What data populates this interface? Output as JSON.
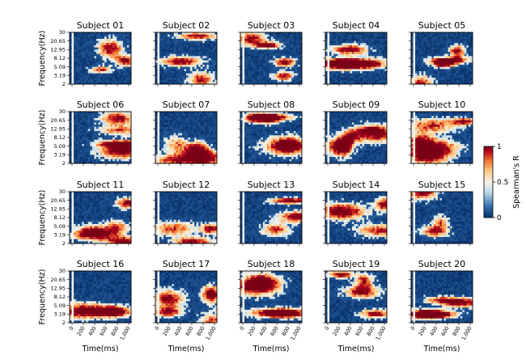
{
  "chart_data": {
    "type": "heatmap",
    "subjects": [
      "Subject 01",
      "Subject 02",
      "Subject 03",
      "Subject 04",
      "Subject 05",
      "Subject 06",
      "Subject 07",
      "Subject 08",
      "Subject 09",
      "Subject 10",
      "Subject 11",
      "Subject 12",
      "Subject 13",
      "Subject 14",
      "Subject 15",
      "Subject 16",
      "Subject 17",
      "Subject 18",
      "Subject 19",
      "Subject 20"
    ],
    "xlabel": "Time(ms)",
    "ylabel": "Frequency(Hz)",
    "x_ticks": [
      "0",
      "200",
      "400",
      "600",
      "800",
      "1,000"
    ],
    "x_range": [
      0,
      1000
    ],
    "y_ticks": [
      "30",
      "20.65",
      "12.95",
      "8.12",
      "5.09",
      "3.19",
      "2"
    ],
    "y_range": [
      2,
      30
    ],
    "colorbar": {
      "label": "Spearman's R",
      "ticks": [
        "1",
        "0.5",
        "0"
      ],
      "range": [
        0,
        1
      ],
      "colors": [
        "#08306b",
        "#2f6bab",
        "#bcd8ea",
        "#f7f3e8",
        "#fdc986",
        "#f0732e",
        "#b3001f",
        "#7a0017"
      ]
    },
    "stimulus_onset_ms": 0
  }
}
